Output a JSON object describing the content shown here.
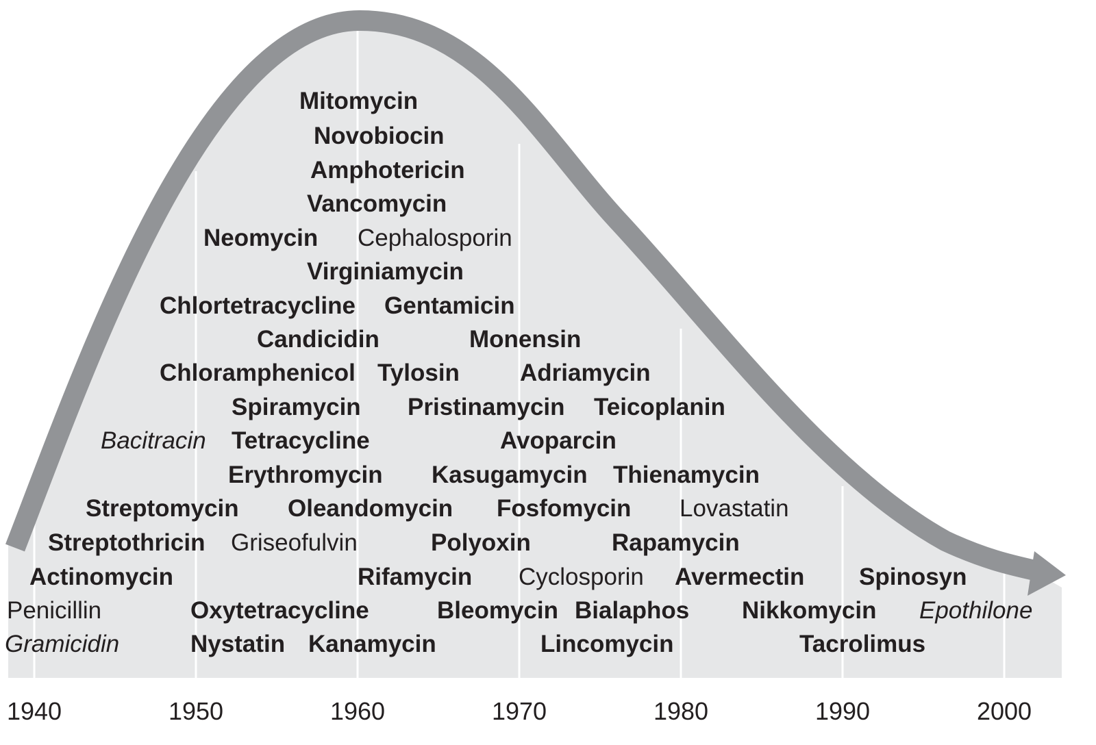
{
  "colors": {
    "fill": "#e6e7e8",
    "arrow": "#929497",
    "gridline": "#ffffff",
    "text": "#231f20"
  },
  "axis": {
    "years": [
      "1940",
      "1950",
      "1960",
      "1970",
      "1980",
      "1990",
      "2000"
    ]
  },
  "labels": [
    {
      "name": "Mitomycin",
      "style": "bold"
    },
    {
      "name": "Novobiocin",
      "style": "bold"
    },
    {
      "name": "Amphotericin",
      "style": "bold"
    },
    {
      "name": "Vancomycin",
      "style": "bold"
    },
    {
      "name": "Neomycin",
      "style": "bold"
    },
    {
      "name": "Cephalosporin",
      "style": "regular"
    },
    {
      "name": "Virginiamycin",
      "style": "bold"
    },
    {
      "name": "Chlortetracycline",
      "style": "bold"
    },
    {
      "name": "Gentamicin",
      "style": "bold"
    },
    {
      "name": "Candicidin",
      "style": "bold"
    },
    {
      "name": "Monensin",
      "style": "bold"
    },
    {
      "name": "Chloramphenicol",
      "style": "bold"
    },
    {
      "name": "Tylosin",
      "style": "bold"
    },
    {
      "name": "Adriamycin",
      "style": "bold"
    },
    {
      "name": "Spiramycin",
      "style": "bold"
    },
    {
      "name": "Pristinamycin",
      "style": "bold"
    },
    {
      "name": "Teicoplanin",
      "style": "bold"
    },
    {
      "name": "Bacitracin",
      "style": "italic"
    },
    {
      "name": "Tetracycline",
      "style": "bold"
    },
    {
      "name": "Avoparcin",
      "style": "bold"
    },
    {
      "name": "Erythromycin",
      "style": "bold"
    },
    {
      "name": "Kasugamycin",
      "style": "bold"
    },
    {
      "name": "Thienamycin",
      "style": "bold"
    },
    {
      "name": "Streptomycin",
      "style": "bold"
    },
    {
      "name": "Oleandomycin",
      "style": "bold"
    },
    {
      "name": "Fosfomycin",
      "style": "bold"
    },
    {
      "name": "Lovastatin",
      "style": "regular"
    },
    {
      "name": "Streptothricin",
      "style": "bold"
    },
    {
      "name": "Griseofulvin",
      "style": "regular"
    },
    {
      "name": "Polyoxin",
      "style": "bold"
    },
    {
      "name": "Rapamycin",
      "style": "bold"
    },
    {
      "name": "Actinomycin",
      "style": "bold"
    },
    {
      "name": "Rifamycin",
      "style": "bold"
    },
    {
      "name": "Cyclosporin",
      "style": "regular"
    },
    {
      "name": "Avermectin",
      "style": "bold"
    },
    {
      "name": "Spinosyn",
      "style": "bold"
    },
    {
      "name": "Penicillin",
      "style": "regular"
    },
    {
      "name": "Oxytetracycline",
      "style": "bold"
    },
    {
      "name": "Bleomycin",
      "style": "bold"
    },
    {
      "name": "Bialaphos",
      "style": "bold"
    },
    {
      "name": "Nikkomycin",
      "style": "bold"
    },
    {
      "name": "Epothilone",
      "style": "italic"
    },
    {
      "name": "Gramicidin",
      "style": "italic"
    },
    {
      "name": "Nystatin",
      "style": "bold"
    },
    {
      "name": "Kanamycin",
      "style": "bold"
    },
    {
      "name": "Lincomycin",
      "style": "bold"
    },
    {
      "name": "Tacrolimus",
      "style": "bold"
    }
  ]
}
